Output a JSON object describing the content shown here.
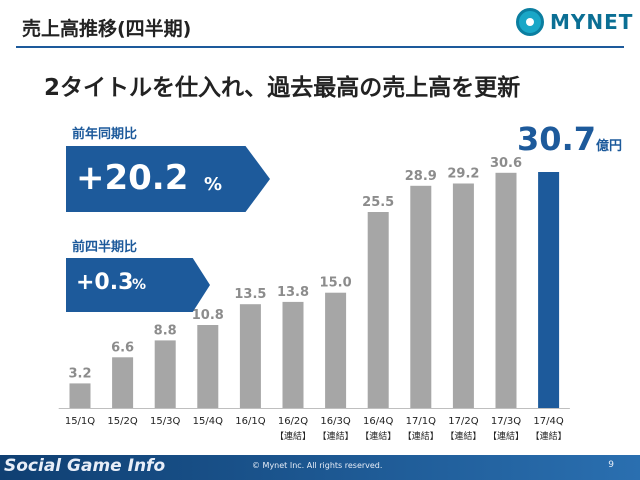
{
  "header": {
    "title": "売上高推移(四半期)",
    "logo_text": "MYNET",
    "subtitle": "2タイトルを仕入れ、過去最高の売上高を更新"
  },
  "metrics": {
    "yoy": {
      "label": "前年同期比",
      "value": "+20.2",
      "unit": "%"
    },
    "qoq": {
      "label": "前四半期比",
      "value": "+0.3",
      "unit": "%"
    }
  },
  "highlight": {
    "value": "30.7",
    "unit": "億円"
  },
  "chart_data": {
    "type": "bar",
    "categories": [
      "15/1Q",
      "15/2Q",
      "15/3Q",
      "15/4Q",
      "16/1Q",
      "16/2Q",
      "16/3Q",
      "16/4Q",
      "17/1Q",
      "17/2Q",
      "17/3Q",
      "17/4Q"
    ],
    "category_notes": [
      "",
      "",
      "",
      "",
      "",
      "【連結】",
      "【連結】",
      "【連結】",
      "【連結】",
      "【連結】",
      "【連結】",
      "【連結】"
    ],
    "values": [
      3.2,
      6.6,
      8.8,
      10.8,
      13.5,
      13.8,
      15.0,
      25.5,
      28.9,
      29.2,
      30.6,
      30.7
    ],
    "value_labels": [
      "3.2",
      "6.6",
      "8.8",
      "10.8",
      "13.5",
      "13.8",
      "15.0",
      "25.5",
      "28.9",
      "29.2",
      "30.6",
      ""
    ],
    "colors": {
      "default": "#a6a6a6",
      "highlight": "#1d5a9b"
    },
    "highlight_index": 11,
    "title": "",
    "xlabel": "",
    "ylabel": "",
    "ylim": [
      0,
      32
    ]
  },
  "footer": {
    "watermark": "Social Game Info",
    "copyright": "© Mynet Inc. All rights reserved.",
    "page_number": "9"
  }
}
